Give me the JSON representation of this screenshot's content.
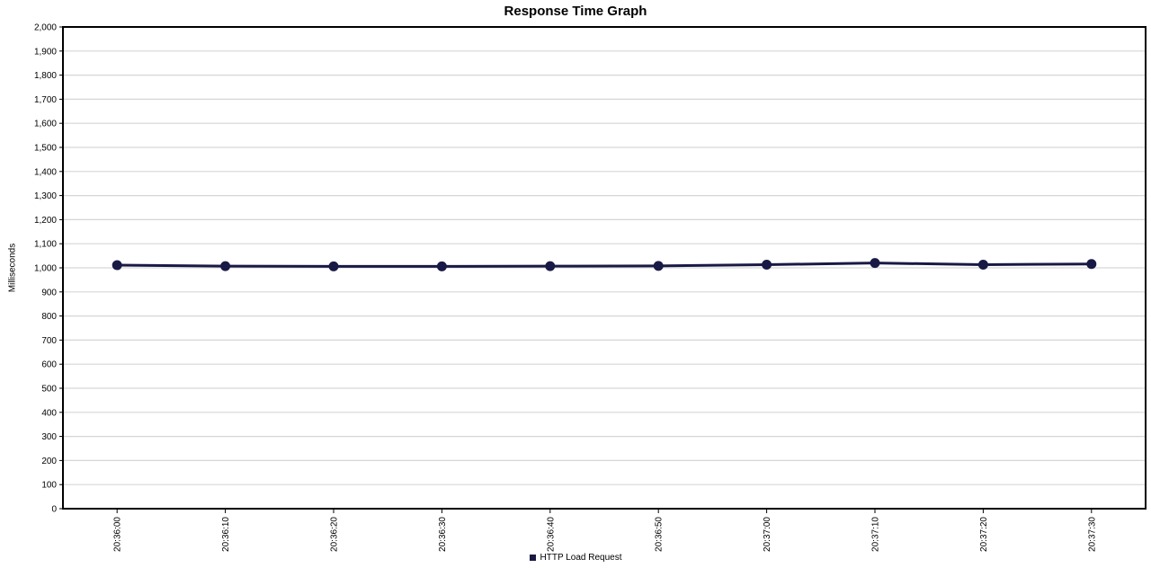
{
  "page": {
    "title": "Response Time Graph"
  },
  "chart_data": {
    "type": "line",
    "title": "Response Time Graph",
    "ylabel": "Milliseconds",
    "xlabel": "",
    "ylim": [
      0,
      2000
    ],
    "ytick_step": 100,
    "grid": true,
    "legend_position": "bottom-center",
    "categories": [
      "20:36:00",
      "20:36:10",
      "20:36:20",
      "20:36:30",
      "20:36:40",
      "20:36:50",
      "20:37:00",
      "20:37:10",
      "20:37:20",
      "20:37:30"
    ],
    "series": [
      {
        "name": "HTTP Load Request",
        "color": "#191946",
        "values": [
          1011,
          1007,
          1006,
          1006,
          1007,
          1008,
          1013,
          1020,
          1013,
          1016
        ]
      }
    ],
    "colors": {
      "gridline": "#d6d6d6",
      "axis": "#000000",
      "text": "#000000",
      "background": "#ffffff"
    }
  }
}
